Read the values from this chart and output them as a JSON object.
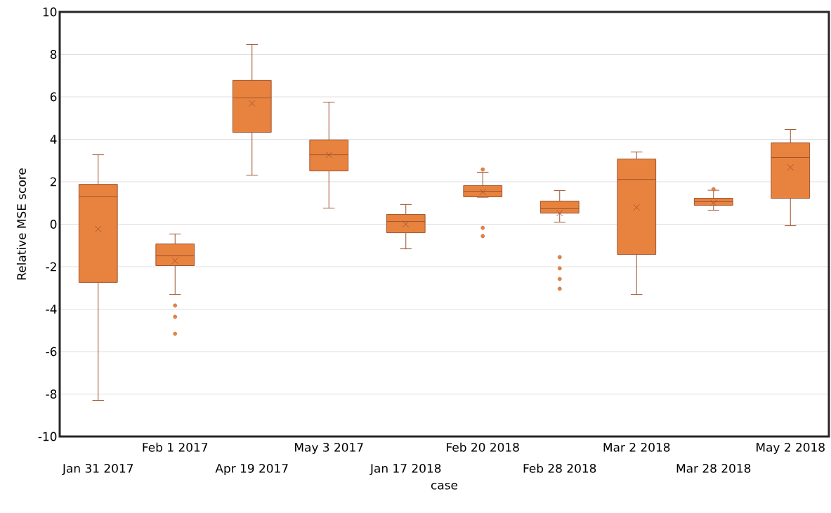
{
  "chart_data": {
    "type": "box",
    "xlabel": "case",
    "ylabel": "Relative MSE score",
    "categories": [
      "Jan 31 2017",
      "Feb 1 2017",
      "Apr 19 2017",
      "May 3 2017",
      "Jan 17 2018",
      "Feb 20 2018",
      "Feb 28 2018",
      "Mar 2 2018",
      "Mar 28 2018",
      "May 2 2018"
    ],
    "color": "#e8833f",
    "boxes": [
      {
        "low": -8.3,
        "q1": -2.74,
        "median": 1.29,
        "q3": 1.88,
        "high": 3.27,
        "mean": -0.23
      },
      {
        "low": -3.31,
        "q1": -1.95,
        "median": -1.49,
        "q3": -0.93,
        "high": -0.46,
        "mean": -1.72,
        "outliers": [
          -3.83,
          -4.36,
          -5.16
        ]
      },
      {
        "low": 2.31,
        "q1": 4.33,
        "median": 5.95,
        "q3": 6.78,
        "high": 8.46,
        "mean": 5.69
      },
      {
        "low": 0.76,
        "q1": 2.51,
        "median": 3.27,
        "q3": 3.97,
        "high": 5.75,
        "mean": 3.27
      },
      {
        "low": -1.16,
        "q1": -0.4,
        "median": 0.13,
        "q3": 0.46,
        "high": 0.93,
        "mean": 0.0
      },
      {
        "low": 1.27,
        "q1": 1.29,
        "median": 1.55,
        "q3": 1.82,
        "high": 2.45,
        "mean": 1.52,
        "outliers": [
          2.58,
          -0.17,
          -0.56
        ]
      },
      {
        "low": 0.1,
        "q1": 0.52,
        "median": 0.73,
        "q3": 1.09,
        "high": 1.59,
        "mean": 0.52,
        "outliers": [
          -1.55,
          -2.08,
          -2.58,
          -3.04
        ]
      },
      {
        "low": -3.31,
        "q1": -1.42,
        "median": 2.11,
        "q3": 3.07,
        "high": 3.4,
        "mean": 0.79
      },
      {
        "low": 0.66,
        "q1": 0.89,
        "median": 1.06,
        "q3": 1.22,
        "high": 1.6,
        "mean": 1.0,
        "outliers": [
          1.65
        ]
      },
      {
        "low": -0.07,
        "q1": 1.22,
        "median": 3.14,
        "q3": 3.83,
        "high": 4.46,
        "mean": 2.68
      }
    ],
    "ylim": [
      -10,
      10
    ],
    "yticks": [
      -10,
      -8,
      -6,
      -4,
      -2,
      0,
      2,
      4,
      6,
      8,
      10
    ],
    "grid": "y"
  }
}
